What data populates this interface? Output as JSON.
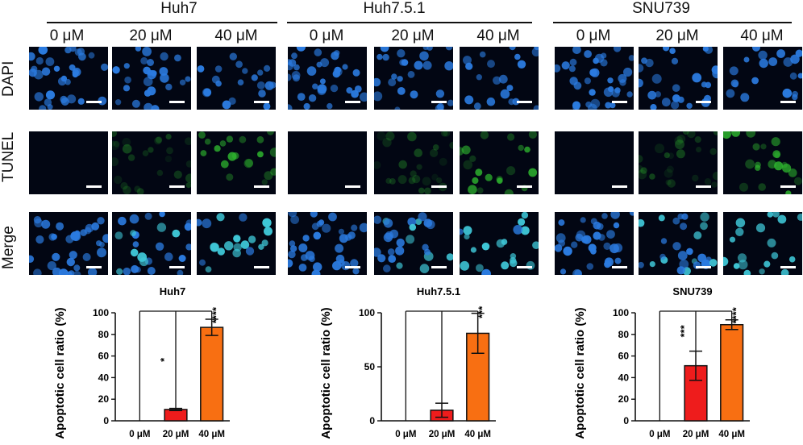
{
  "groups": [
    {
      "name": "Huh7",
      "concentrations": [
        "0 μM",
        "20 μM",
        "40 μM"
      ]
    },
    {
      "name": "Huh7.5.1",
      "concentrations": [
        "0 μM",
        "20 μM",
        "40 μM"
      ]
    },
    {
      "name": "SNU739",
      "concentrations": [
        "0 μM",
        "20 μM",
        "40 μM"
      ]
    }
  ],
  "row_labels": {
    "dapi": "DAPI",
    "tunel": "TUNEL",
    "merge": "Merge"
  },
  "colors": {
    "bar_20": "#ee1c1c",
    "bar_40": "#f86f12",
    "dapi": "#2b7be0",
    "tunel": "#2fb82f",
    "merge": "#3fc8d8",
    "panel_bg": "#020613"
  },
  "chart_data": [
    {
      "type": "bar",
      "title": "Huh7",
      "ylabel": "Apoptotic cell ratio (%)",
      "categories": [
        "0 μM",
        "20 μM",
        "40 μM"
      ],
      "values": [
        0,
        10.5,
        86.5
      ],
      "errors": [
        0,
        1.0,
        7.5
      ],
      "ylim": [
        0,
        100
      ],
      "yticks": [
        0,
        20,
        40,
        60,
        80,
        100
      ],
      "significance": [
        "",
        "*",
        "****"
      ]
    },
    {
      "type": "bar",
      "title": "Huh7.5.1",
      "ylabel": "Apoptotic cell ratio (%)",
      "categories": [
        "0 μM",
        "20 μM",
        "40 μM"
      ],
      "values": [
        0,
        9.8,
        81
      ],
      "errors": [
        0,
        6.5,
        18.5
      ],
      "ylim": [
        0,
        100
      ],
      "yticks": [
        0,
        50,
        100
      ],
      "significance": [
        "",
        "",
        "***"
      ]
    },
    {
      "type": "bar",
      "title": "SNU739",
      "ylabel": "Apoptotic cell ratio (%)",
      "categories": [
        "0 μM",
        "20 μM",
        "40 μM"
      ],
      "values": [
        0,
        51,
        89
      ],
      "errors": [
        0,
        13.5,
        4.5
      ],
      "ylim": [
        0,
        100
      ],
      "yticks": [
        0,
        20,
        40,
        60,
        80,
        100
      ],
      "significance": [
        "",
        "***",
        "****"
      ]
    }
  ]
}
